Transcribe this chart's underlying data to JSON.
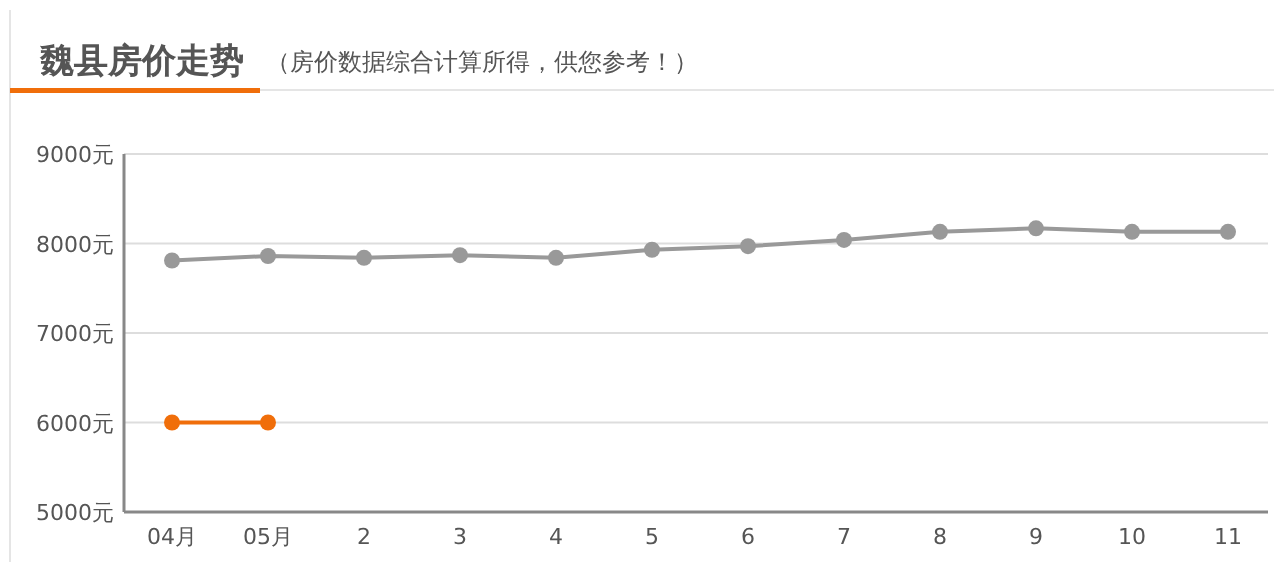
{
  "chart_data": {
    "type": "line",
    "title": "魏县房价走势",
    "subtitle": "（房价数据综合计算所得，供您参考！）",
    "categories": [
      "04月",
      "05月",
      "2",
      "3",
      "4",
      "5",
      "6",
      "7",
      "8",
      "9",
      "10",
      "11"
    ],
    "series": [
      {
        "color": "#999999",
        "values": [
          7810,
          7860,
          7840,
          7870,
          7840,
          7930,
          7970,
          8040,
          8130,
          8170,
          8130,
          8130
        ]
      },
      {
        "color": "#f06e0a",
        "values": [
          6000,
          6000,
          null,
          null,
          null,
          null,
          null,
          null,
          null,
          null,
          null,
          null
        ]
      }
    ],
    "ylim": [
      5000,
      9000
    ],
    "yticks": [
      {
        "value": 5000,
        "label": "5000元"
      },
      {
        "value": 6000,
        "label": "6000元"
      },
      {
        "value": 7000,
        "label": "7000元"
      },
      {
        "value": 8000,
        "label": "8000元"
      },
      {
        "value": 9000,
        "label": "9000元"
      }
    ],
    "grid": "y",
    "marker": "circle",
    "line_style": "solid"
  }
}
